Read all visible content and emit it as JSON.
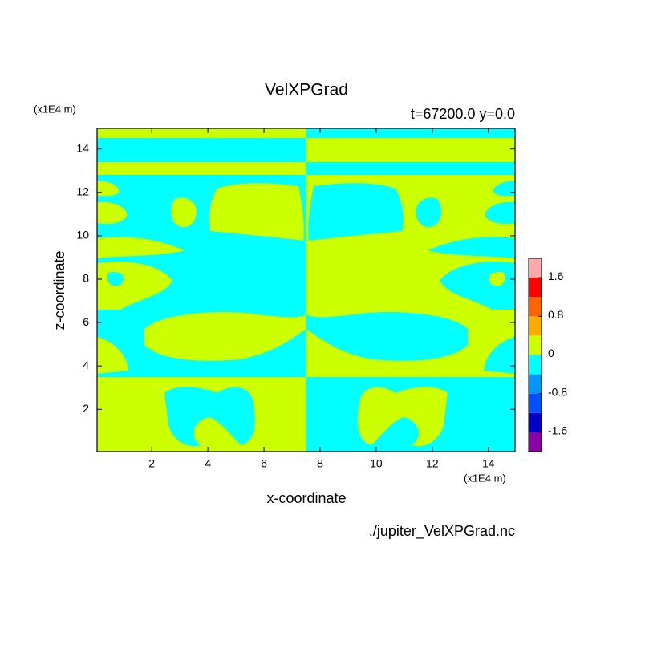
{
  "chart_data": {
    "type": "contour",
    "title": "VelXPGrad",
    "subtitle": "t=67200.0 y=0.0",
    "x_label": "x-coordinate",
    "y_label": "z-coordinate",
    "x_unit": "(x1E4 m)",
    "y_unit": "(x1E4 m)",
    "footer": "./jupiter_VelXPGrad.nc",
    "xlim": [
      0.05,
      14.95
    ],
    "ylim": [
      0.05,
      14.95
    ],
    "xticks": [
      2,
      4,
      6,
      8,
      10,
      12,
      14
    ],
    "yticks": [
      2,
      4,
      6,
      8,
      10,
      12,
      14
    ],
    "levels": [
      -2.0,
      -1.6,
      -1.2,
      -0.8,
      -0.4,
      0,
      0.4,
      0.8,
      1.2,
      1.6,
      2.0
    ],
    "level_colors": [
      "#8c00a8",
      "#0000c8",
      "#0050ff",
      "#0096ff",
      "#00ffff",
      "#ccff00",
      "#ffaa00",
      "#ff6400",
      "#ff0000",
      "#ffaaaa"
    ],
    "colorbar_ticks": [
      1.6,
      0.8,
      0,
      -0.8,
      -1.6
    ]
  }
}
